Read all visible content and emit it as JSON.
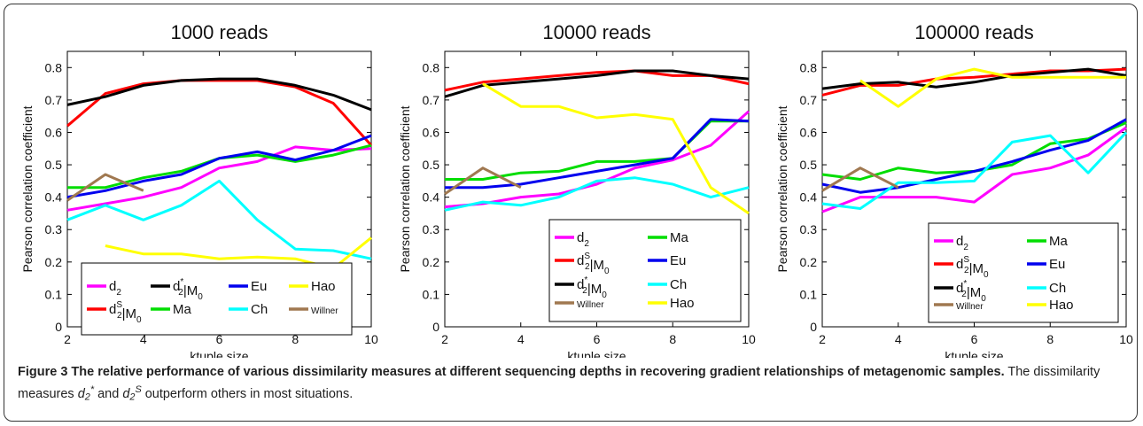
{
  "figure": {
    "caption_lead": "Figure 3 The relative performance of various dissimilarity measures at different sequencing depths in recovering gradient relationships of metagenomic samples.",
    "caption_body_pre": "The dissimilarity measures ",
    "caption_body_and": " and ",
    "caption_body_post": " outperform others in most situations.",
    "caption_sym_d": "d",
    "caption_sym_sub": "2",
    "caption_sym_star": "*",
    "caption_sym_s": "S"
  },
  "colors": {
    "d2": "#ff00ff",
    "d2S": "#ff0000",
    "d2star": "#000000",
    "Ma": "#00dd00",
    "Eu": "#0000ee",
    "Ch": "#00ffff",
    "Hao": "#ffff00",
    "Willner": "#a07850"
  },
  "chart_data": [
    {
      "type": "line",
      "title": "1000 reads",
      "xlabel": "ktuple size",
      "ylabel": "Pearson correlation coefficient",
      "xlim": [
        2,
        10
      ],
      "ylim": [
        0,
        0.85
      ],
      "xticks": [
        2,
        4,
        6,
        8,
        10
      ],
      "yticks": [
        0,
        0.1,
        0.2,
        0.3,
        0.4,
        0.5,
        0.6,
        0.7,
        0.8
      ],
      "legend": "bottom",
      "series": [
        {
          "key": "d2",
          "x": [
            2,
            3,
            4,
            5,
            6,
            7,
            8,
            9,
            10
          ],
          "y": [
            0.36,
            0.38,
            0.4,
            0.43,
            0.49,
            0.51,
            0.555,
            0.545,
            0.55
          ]
        },
        {
          "key": "d2S",
          "x": [
            2,
            3,
            4,
            5,
            6,
            7,
            8,
            9,
            10
          ],
          "y": [
            0.62,
            0.72,
            0.75,
            0.76,
            0.76,
            0.76,
            0.74,
            0.69,
            0.56
          ]
        },
        {
          "key": "d2star",
          "x": [
            2,
            3,
            4,
            5,
            6,
            7,
            8,
            9,
            10
          ],
          "y": [
            0.685,
            0.71,
            0.745,
            0.76,
            0.765,
            0.765,
            0.745,
            0.715,
            0.67
          ]
        },
        {
          "key": "Ma",
          "x": [
            2,
            3,
            4,
            5,
            6,
            7,
            8,
            9,
            10
          ],
          "y": [
            0.43,
            0.43,
            0.46,
            0.48,
            0.52,
            0.53,
            0.51,
            0.53,
            0.56
          ]
        },
        {
          "key": "Eu",
          "x": [
            2,
            3,
            4,
            5,
            6,
            7,
            8,
            9,
            10
          ],
          "y": [
            0.4,
            0.42,
            0.45,
            0.47,
            0.52,
            0.54,
            0.515,
            0.545,
            0.59
          ]
        },
        {
          "key": "Ch",
          "x": [
            2,
            3,
            4,
            5,
            6,
            7,
            8,
            9,
            10
          ],
          "y": [
            0.33,
            0.375,
            0.33,
            0.375,
            0.45,
            0.33,
            0.24,
            0.235,
            0.21
          ]
        },
        {
          "key": "Hao",
          "x": [
            3,
            4,
            5,
            6,
            7,
            8,
            9,
            10
          ],
          "y": [
            0.25,
            0.225,
            0.225,
            0.21,
            0.215,
            0.21,
            0.18,
            0.275
          ]
        },
        {
          "key": "Willner",
          "x": [
            2,
            3,
            4
          ],
          "y": [
            0.39,
            0.47,
            0.42
          ]
        }
      ],
      "legend_entries": [
        {
          "key": "d2",
          "base": "d",
          "sub": "2",
          "sup": "",
          "tail": ""
        },
        {
          "key": "d2star",
          "base": "d",
          "sub": "2",
          "sup": "*",
          "tail": "|M",
          "tailsub": "0"
        },
        {
          "key": "Eu",
          "base": "Eu",
          "sub": "",
          "sup": "",
          "tail": ""
        },
        {
          "key": "Hao",
          "base": "Hao",
          "sub": "",
          "sup": "",
          "tail": ""
        },
        {
          "key": "d2S",
          "base": "d",
          "sub": "2",
          "sup": "S",
          "tail": "|M",
          "tailsub": "0"
        },
        {
          "key": "Ma",
          "base": "Ma",
          "sub": "",
          "sup": "",
          "tail": ""
        },
        {
          "key": "Ch",
          "base": "Ch",
          "sub": "",
          "sup": "",
          "tail": ""
        },
        {
          "key": "Willner",
          "base": "Willner",
          "sub": "",
          "sup": "",
          "tail": "",
          "small": true
        }
      ]
    },
    {
      "type": "line",
      "title": "10000 reads",
      "xlabel": "ktuple size",
      "ylabel": "Pearson correlation coefficient",
      "xlim": [
        2,
        10
      ],
      "ylim": [
        0,
        0.85
      ],
      "xticks": [
        2,
        4,
        6,
        8,
        10
      ],
      "yticks": [
        0,
        0.1,
        0.2,
        0.3,
        0.4,
        0.5,
        0.6,
        0.7,
        0.8
      ],
      "legend": "bottom-right",
      "series": [
        {
          "key": "d2",
          "x": [
            2,
            3,
            4,
            5,
            6,
            7,
            8,
            9,
            10
          ],
          "y": [
            0.37,
            0.38,
            0.4,
            0.41,
            0.44,
            0.49,
            0.515,
            0.56,
            0.665
          ]
        },
        {
          "key": "d2S",
          "x": [
            2,
            3,
            4,
            5,
            6,
            7,
            8,
            9,
            10
          ],
          "y": [
            0.73,
            0.755,
            0.765,
            0.775,
            0.785,
            0.79,
            0.775,
            0.775,
            0.75
          ]
        },
        {
          "key": "d2star",
          "x": [
            2,
            3,
            4,
            5,
            6,
            7,
            8,
            9,
            10
          ],
          "y": [
            0.71,
            0.745,
            0.755,
            0.765,
            0.775,
            0.79,
            0.79,
            0.775,
            0.765
          ]
        },
        {
          "key": "Ma",
          "x": [
            2,
            3,
            4,
            5,
            6,
            7,
            8,
            9,
            10
          ],
          "y": [
            0.455,
            0.455,
            0.475,
            0.48,
            0.51,
            0.51,
            0.52,
            0.635,
            0.635
          ]
        },
        {
          "key": "Eu",
          "x": [
            2,
            3,
            4,
            5,
            6,
            7,
            8,
            9,
            10
          ],
          "y": [
            0.43,
            0.43,
            0.44,
            0.46,
            0.48,
            0.5,
            0.52,
            0.64,
            0.635
          ]
        },
        {
          "key": "Ch",
          "x": [
            2,
            3,
            4,
            5,
            6,
            7,
            8,
            9,
            10
          ],
          "y": [
            0.36,
            0.385,
            0.375,
            0.4,
            0.45,
            0.46,
            0.44,
            0.4,
            0.43
          ]
        },
        {
          "key": "Hao",
          "x": [
            3,
            4,
            5,
            6,
            7,
            8,
            9,
            10
          ],
          "y": [
            0.75,
            0.68,
            0.68,
            0.645,
            0.655,
            0.64,
            0.43,
            0.35
          ]
        },
        {
          "key": "Willner",
          "x": [
            2,
            3,
            4
          ],
          "y": [
            0.41,
            0.49,
            0.43
          ]
        }
      ],
      "legend_entries": [
        {
          "key": "d2",
          "base": "d",
          "sub": "2",
          "sup": "",
          "tail": ""
        },
        {
          "key": "Ma",
          "base": "Ma",
          "sub": "",
          "sup": "",
          "tail": ""
        },
        {
          "key": "d2S",
          "base": "d",
          "sub": "2",
          "sup": "S",
          "tail": "|M",
          "tailsub": "0"
        },
        {
          "key": "Eu",
          "base": "Eu",
          "sub": "",
          "sup": "",
          "tail": ""
        },
        {
          "key": "d2star",
          "base": "d",
          "sub": "2",
          "sup": "*",
          "tail": "|M",
          "tailsub": "0"
        },
        {
          "key": "Ch",
          "base": "Ch",
          "sub": "",
          "sup": "",
          "tail": ""
        },
        {
          "key": "Willner",
          "base": "Willner",
          "sub": "",
          "sup": "",
          "tail": "",
          "small": true
        },
        {
          "key": "Hao",
          "base": "Hao",
          "sub": "",
          "sup": "",
          "tail": ""
        }
      ]
    },
    {
      "type": "line",
      "title": "100000 reads",
      "xlabel": "ktuple size",
      "ylabel": "Pearson correlation coefficient",
      "xlim": [
        2,
        10
      ],
      "ylim": [
        0,
        0.85
      ],
      "xticks": [
        2,
        4,
        6,
        8,
        10
      ],
      "yticks": [
        0,
        0.1,
        0.2,
        0.3,
        0.4,
        0.5,
        0.6,
        0.7,
        0.8
      ],
      "legend": "bottom-right",
      "series": [
        {
          "key": "d2",
          "x": [
            2,
            3,
            4,
            5,
            6,
            7,
            8,
            9,
            10
          ],
          "y": [
            0.355,
            0.4,
            0.4,
            0.4,
            0.385,
            0.47,
            0.49,
            0.53,
            0.615
          ]
        },
        {
          "key": "d2S",
          "x": [
            2,
            3,
            4,
            5,
            6,
            7,
            8,
            9,
            10
          ],
          "y": [
            0.715,
            0.745,
            0.745,
            0.765,
            0.77,
            0.78,
            0.79,
            0.79,
            0.795
          ]
        },
        {
          "key": "d2star",
          "x": [
            2,
            3,
            4,
            5,
            6,
            7,
            8,
            9,
            10
          ],
          "y": [
            0.735,
            0.75,
            0.755,
            0.74,
            0.755,
            0.775,
            0.785,
            0.795,
            0.775
          ]
        },
        {
          "key": "Ma",
          "x": [
            2,
            3,
            4,
            5,
            6,
            7,
            8,
            9,
            10
          ],
          "y": [
            0.47,
            0.455,
            0.49,
            0.475,
            0.48,
            0.5,
            0.565,
            0.58,
            0.63
          ]
        },
        {
          "key": "Eu",
          "x": [
            2,
            3,
            4,
            5,
            6,
            7,
            8,
            9,
            10
          ],
          "y": [
            0.44,
            0.415,
            0.43,
            0.455,
            0.48,
            0.51,
            0.545,
            0.575,
            0.64
          ]
        },
        {
          "key": "Ch",
          "x": [
            2,
            3,
            4,
            5,
            6,
            7,
            8,
            9,
            10
          ],
          "y": [
            0.38,
            0.365,
            0.445,
            0.445,
            0.45,
            0.57,
            0.59,
            0.475,
            0.6
          ]
        },
        {
          "key": "Hao",
          "x": [
            3,
            4,
            5,
            6,
            7,
            8,
            9,
            10
          ],
          "y": [
            0.76,
            0.68,
            0.765,
            0.795,
            0.77,
            0.77,
            0.77,
            0.77
          ]
        },
        {
          "key": "Willner",
          "x": [
            2,
            3,
            4
          ],
          "y": [
            0.42,
            0.49,
            0.43
          ]
        }
      ],
      "legend_entries": [
        {
          "key": "d2",
          "base": "d",
          "sub": "2",
          "sup": "",
          "tail": ""
        },
        {
          "key": "Ma",
          "base": "Ma",
          "sub": "",
          "sup": "",
          "tail": ""
        },
        {
          "key": "d2S",
          "base": "d",
          "sub": "2",
          "sup": "S",
          "tail": "|M",
          "tailsub": "0"
        },
        {
          "key": "Eu",
          "base": "Eu",
          "sub": "",
          "sup": "",
          "tail": ""
        },
        {
          "key": "d2star",
          "base": "d",
          "sub": "2",
          "sup": "*",
          "tail": "|M",
          "tailsub": "0"
        },
        {
          "key": "Ch",
          "base": "Ch",
          "sub": "",
          "sup": "",
          "tail": ""
        },
        {
          "key": "Willner",
          "base": "Willner",
          "sub": "",
          "sup": "",
          "tail": "",
          "small": true
        },
        {
          "key": "Hao",
          "base": "Hao",
          "sub": "",
          "sup": "",
          "tail": ""
        }
      ]
    }
  ]
}
